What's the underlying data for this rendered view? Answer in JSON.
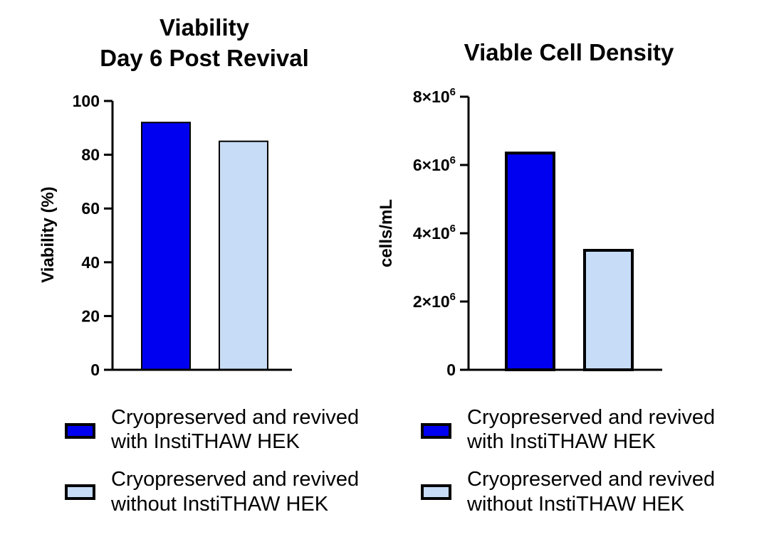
{
  "colors": {
    "with_instithaw": "#0000f0",
    "without_instithaw": "#c6dcf7",
    "outline": "#000000"
  },
  "chart_data": [
    {
      "type": "bar",
      "title_lines": [
        "Viability",
        "Day 6 Post Revival"
      ],
      "xlabel": "",
      "ylabel": "Viability (%)",
      "ylim": [
        0,
        100
      ],
      "yticks": [
        0,
        20,
        40,
        60,
        80,
        100
      ],
      "ytick_labels": [
        "0",
        "20",
        "40",
        "60",
        "80",
        "100"
      ],
      "categories": [
        "Cryopreserved and revived with InstiTHAW HEK",
        "Cryopreserved and revived without InstiTHAW HEK"
      ],
      "values": [
        92,
        85
      ],
      "legend_lines": [
        [
          "Cryopreserved and revived",
          "with InstiTHAW HEK"
        ],
        [
          "Cryopreserved and revived",
          "without InstiTHAW HEK"
        ]
      ],
      "legend_placement": "bottom"
    },
    {
      "type": "bar",
      "title_lines": [
        "Viable Cell Density"
      ],
      "xlabel": "",
      "ylabel": "cells/mL",
      "ylim": [
        0,
        8000000
      ],
      "yticks": [
        0,
        2000000,
        4000000,
        6000000,
        8000000
      ],
      "ytick_labels": [
        "0",
        "2×10",
        "4×10",
        "6×10",
        "8×10"
      ],
      "ytick_exponent": "6",
      "categories": [
        "Cryopreserved and revived with InstiTHAW HEK",
        "Cryopreserved and revived without InstiTHAW HEK"
      ],
      "values": [
        6350000,
        3500000
      ],
      "legend_lines": [
        [
          "Cryopreserved and revived",
          "with InstiTHAW HEK"
        ],
        [
          "Cryopreserved and revived",
          "without InstiTHAW HEK"
        ]
      ],
      "legend_placement": "bottom"
    }
  ]
}
